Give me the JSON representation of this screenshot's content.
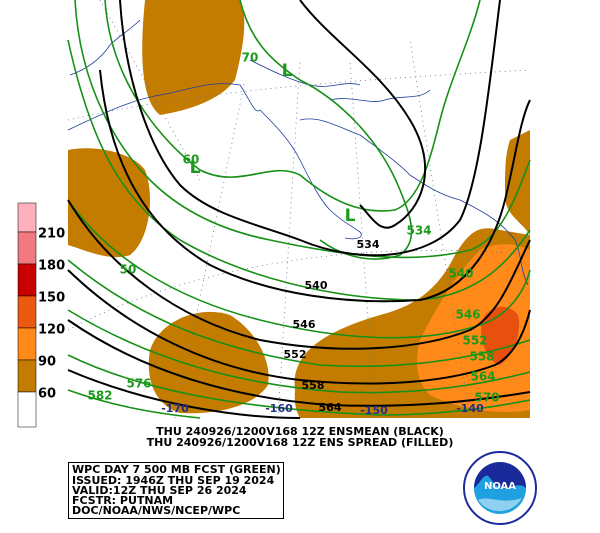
{
  "map": {
    "labels": [
      "70",
      "L",
      "60",
      "L",
      "L",
      "534",
      "534",
      "540",
      "50",
      "540",
      "546",
      "546",
      "552",
      "552",
      "558",
      "576",
      "582",
      "558",
      "564",
      "564",
      "570",
      "-170",
      "-160",
      "-150",
      "-140"
    ]
  },
  "legend": {
    "levels": [
      210,
      180,
      150,
      120,
      90,
      60
    ]
  },
  "caption": [
    "THU 240926/1200V168  12Z ENSMEAN (BLACK)",
    "THU 240926/1200V168  12Z ENS SPREAD (FILLED)"
  ],
  "info": [
    "WPC DAY 7 500 MB FCST (GREEN)",
    "ISSUED: 1946Z THU SEP 19 2024",
    "VALID:12Z THU SEP 26 2024",
    "FCSTR: PUTNAM",
    "DOC/NOAA/NWS/NCEP/WPC"
  ],
  "logo": "NOAA"
}
